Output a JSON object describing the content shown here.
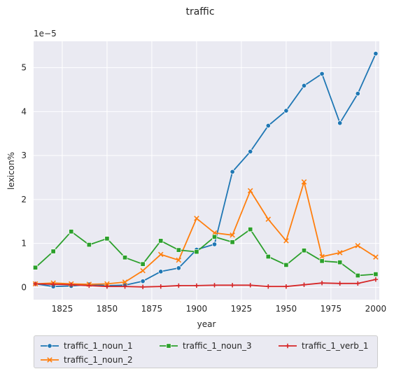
{
  "chart_data": {
    "type": "line",
    "title": "traffic",
    "xlabel": "year",
    "ylabel": "lexicon%",
    "offset_text": "1e−5",
    "x": [
      1810,
      1820,
      1830,
      1840,
      1850,
      1860,
      1870,
      1880,
      1890,
      1900,
      1910,
      1920,
      1930,
      1940,
      1950,
      1960,
      1970,
      1980,
      1990,
      2000
    ],
    "xlim": [
      1809,
      2002
    ],
    "ylim": [
      -0.28,
      5.6
    ],
    "x_ticks": [
      1825,
      1850,
      1875,
      1900,
      1925,
      1950,
      1975,
      2000
    ],
    "y_ticks": [
      0,
      1,
      2,
      3,
      4,
      5
    ],
    "grid": true,
    "legend_position": "below",
    "series": [
      {
        "name": "traffic_1_noun_1",
        "color": "#1f77b4",
        "marker": "circle",
        "values": [
          0.08,
          0.02,
          0.03,
          0.07,
          0.04,
          0.05,
          0.14,
          0.36,
          0.44,
          0.86,
          0.98,
          2.63,
          3.09,
          3.68,
          4.02,
          4.59,
          4.86,
          3.74,
          4.41,
          5.32
        ]
      },
      {
        "name": "traffic_1_noun_2",
        "color": "#ff7f0e",
        "marker": "x",
        "values": [
          0.08,
          0.1,
          0.08,
          0.07,
          0.08,
          0.12,
          0.38,
          0.75,
          0.62,
          1.57,
          1.24,
          1.19,
          2.2,
          1.55,
          1.06,
          2.4,
          0.7,
          0.79,
          0.95,
          0.69
        ]
      },
      {
        "name": "traffic_1_noun_3",
        "color": "#2ca02c",
        "marker": "square",
        "values": [
          0.45,
          0.82,
          1.27,
          0.97,
          1.11,
          0.68,
          0.53,
          1.06,
          0.85,
          0.81,
          1.15,
          1.03,
          1.32,
          0.7,
          0.51,
          0.84,
          0.6,
          0.57,
          0.27,
          0.3
        ]
      },
      {
        "name": "traffic_1_verb_1",
        "color": "#d62728",
        "marker": "plus",
        "values": [
          0.08,
          0.07,
          0.06,
          0.04,
          0.02,
          0.02,
          0.01,
          0.02,
          0.04,
          0.04,
          0.05,
          0.05,
          0.05,
          0.02,
          0.02,
          0.06,
          0.1,
          0.09,
          0.09,
          0.18
        ]
      }
    ]
  }
}
